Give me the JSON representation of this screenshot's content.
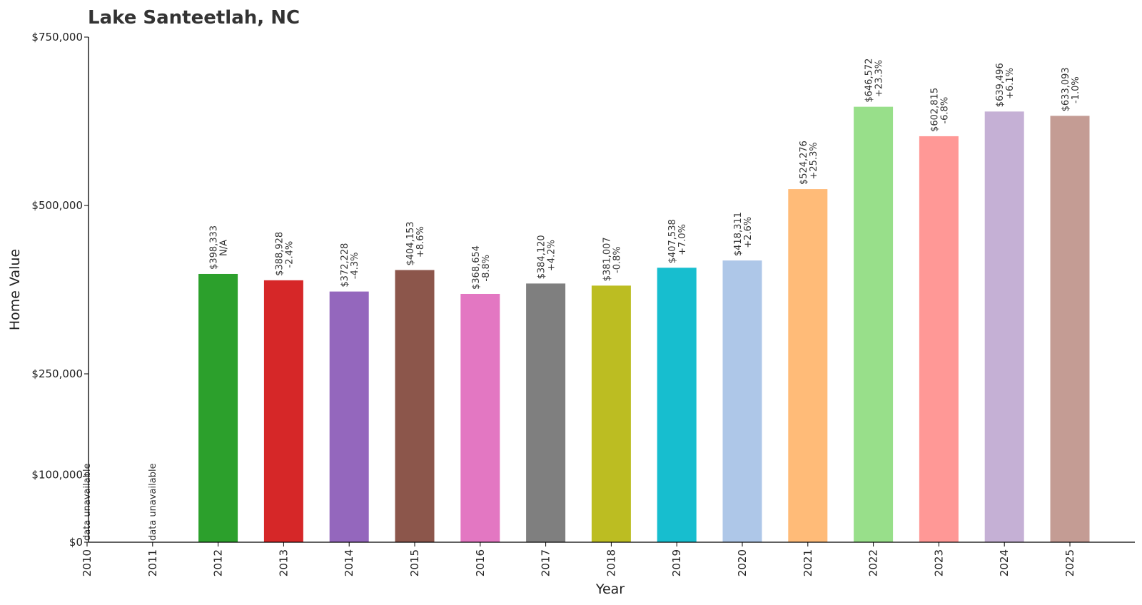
{
  "chart_data": {
    "type": "bar",
    "title": "Lake Santeetlah, NC",
    "xlabel": "Year",
    "ylabel": "Home Value",
    "ylim": [
      0,
      750000
    ],
    "y_ticks": [
      {
        "value": 0,
        "label": "$0"
      },
      {
        "value": 100000,
        "label": "$100,000"
      },
      {
        "value": 250000,
        "label": "$250,000"
      },
      {
        "value": 500000,
        "label": "$500,000"
      },
      {
        "value": 750000,
        "label": "$750,000"
      }
    ],
    "grid": false,
    "categories": [
      "2010",
      "2011",
      "2012",
      "2013",
      "2014",
      "2015",
      "2016",
      "2017",
      "2018",
      "2019",
      "2020",
      "2021",
      "2022",
      "2023",
      "2024",
      "2025"
    ],
    "values": [
      null,
      null,
      398333,
      388928,
      372228,
      404153,
      368654,
      384120,
      381007,
      407538,
      418311,
      524276,
      646572,
      602815,
      639496,
      633093
    ],
    "value_labels": [
      null,
      null,
      "$398,333",
      "$388,928",
      "$372,228",
      "$404,153",
      "$368,654",
      "$384,120",
      "$381,007",
      "$407,538",
      "$418,311",
      "$524,276",
      "$646,572",
      "$602,815",
      "$639,496",
      "$633,093"
    ],
    "change_labels": [
      null,
      null,
      "N/A",
      "-2.4%",
      "-4.3%",
      "+8.6%",
      "-8.8%",
      "+4.2%",
      "-0.8%",
      "+7.0%",
      "+2.6%",
      "+25.3%",
      "+23.3%",
      "-6.8%",
      "+6.1%",
      "-1.0%"
    ],
    "missing_label": "data unavailable",
    "colors": [
      "#1f77b4",
      "#ff7f0e",
      "#2ca02c",
      "#d62728",
      "#9467bd",
      "#8c564b",
      "#e377c2",
      "#7f7f7f",
      "#bcbd22",
      "#17becf",
      "#aec7e8",
      "#ffbb78",
      "#98df8a",
      "#ff9896",
      "#c5b0d5",
      "#c49c94"
    ]
  }
}
